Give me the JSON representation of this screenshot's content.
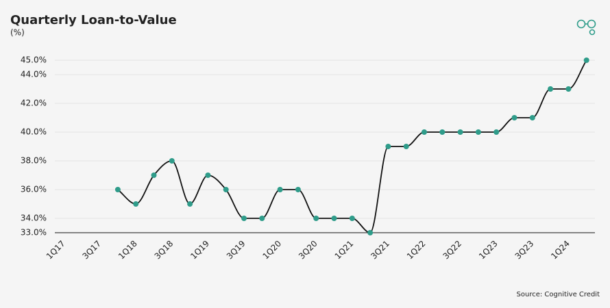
{
  "chart_data": {
    "type": "line",
    "title": "Quarterly Loan-to-Value",
    "subtitle": "(%)",
    "source": "Source: Cognitive Credit",
    "categories": [
      "1Q17",
      null,
      "3Q17",
      null,
      "1Q18",
      null,
      "3Q18",
      null,
      "1Q19",
      null,
      "3Q19",
      null,
      "1Q20",
      null,
      "3Q20",
      null,
      "1Q21",
      null,
      "3Q21",
      null,
      "1Q22",
      null,
      "3Q22",
      null,
      "1Q23",
      null,
      "3Q23",
      null,
      "1Q24",
      null
    ],
    "values": [
      null,
      null,
      null,
      36,
      35,
      37,
      38,
      35,
      37,
      36,
      34,
      34,
      36,
      36,
      34,
      34,
      34,
      33,
      39,
      39,
      40,
      40,
      40,
      40,
      40,
      41,
      41,
      43,
      43,
      45
    ],
    "color": "#2f9c8a",
    "line_color": "#111111",
    "ylim": [
      33,
      45
    ],
    "yticks": [
      {
        "value": 33,
        "label": "33.0%"
      },
      {
        "value": 34,
        "label": "34.0%"
      },
      {
        "value": 36,
        "label": "36.0%"
      },
      {
        "value": 38,
        "label": "38.0%"
      },
      {
        "value": 40,
        "label": "40.0%"
      },
      {
        "value": 42,
        "label": "42.0%"
      },
      {
        "value": 44,
        "label": "44.0%"
      },
      {
        "value": 45,
        "label": "45.0%"
      }
    ],
    "grid": true
  }
}
